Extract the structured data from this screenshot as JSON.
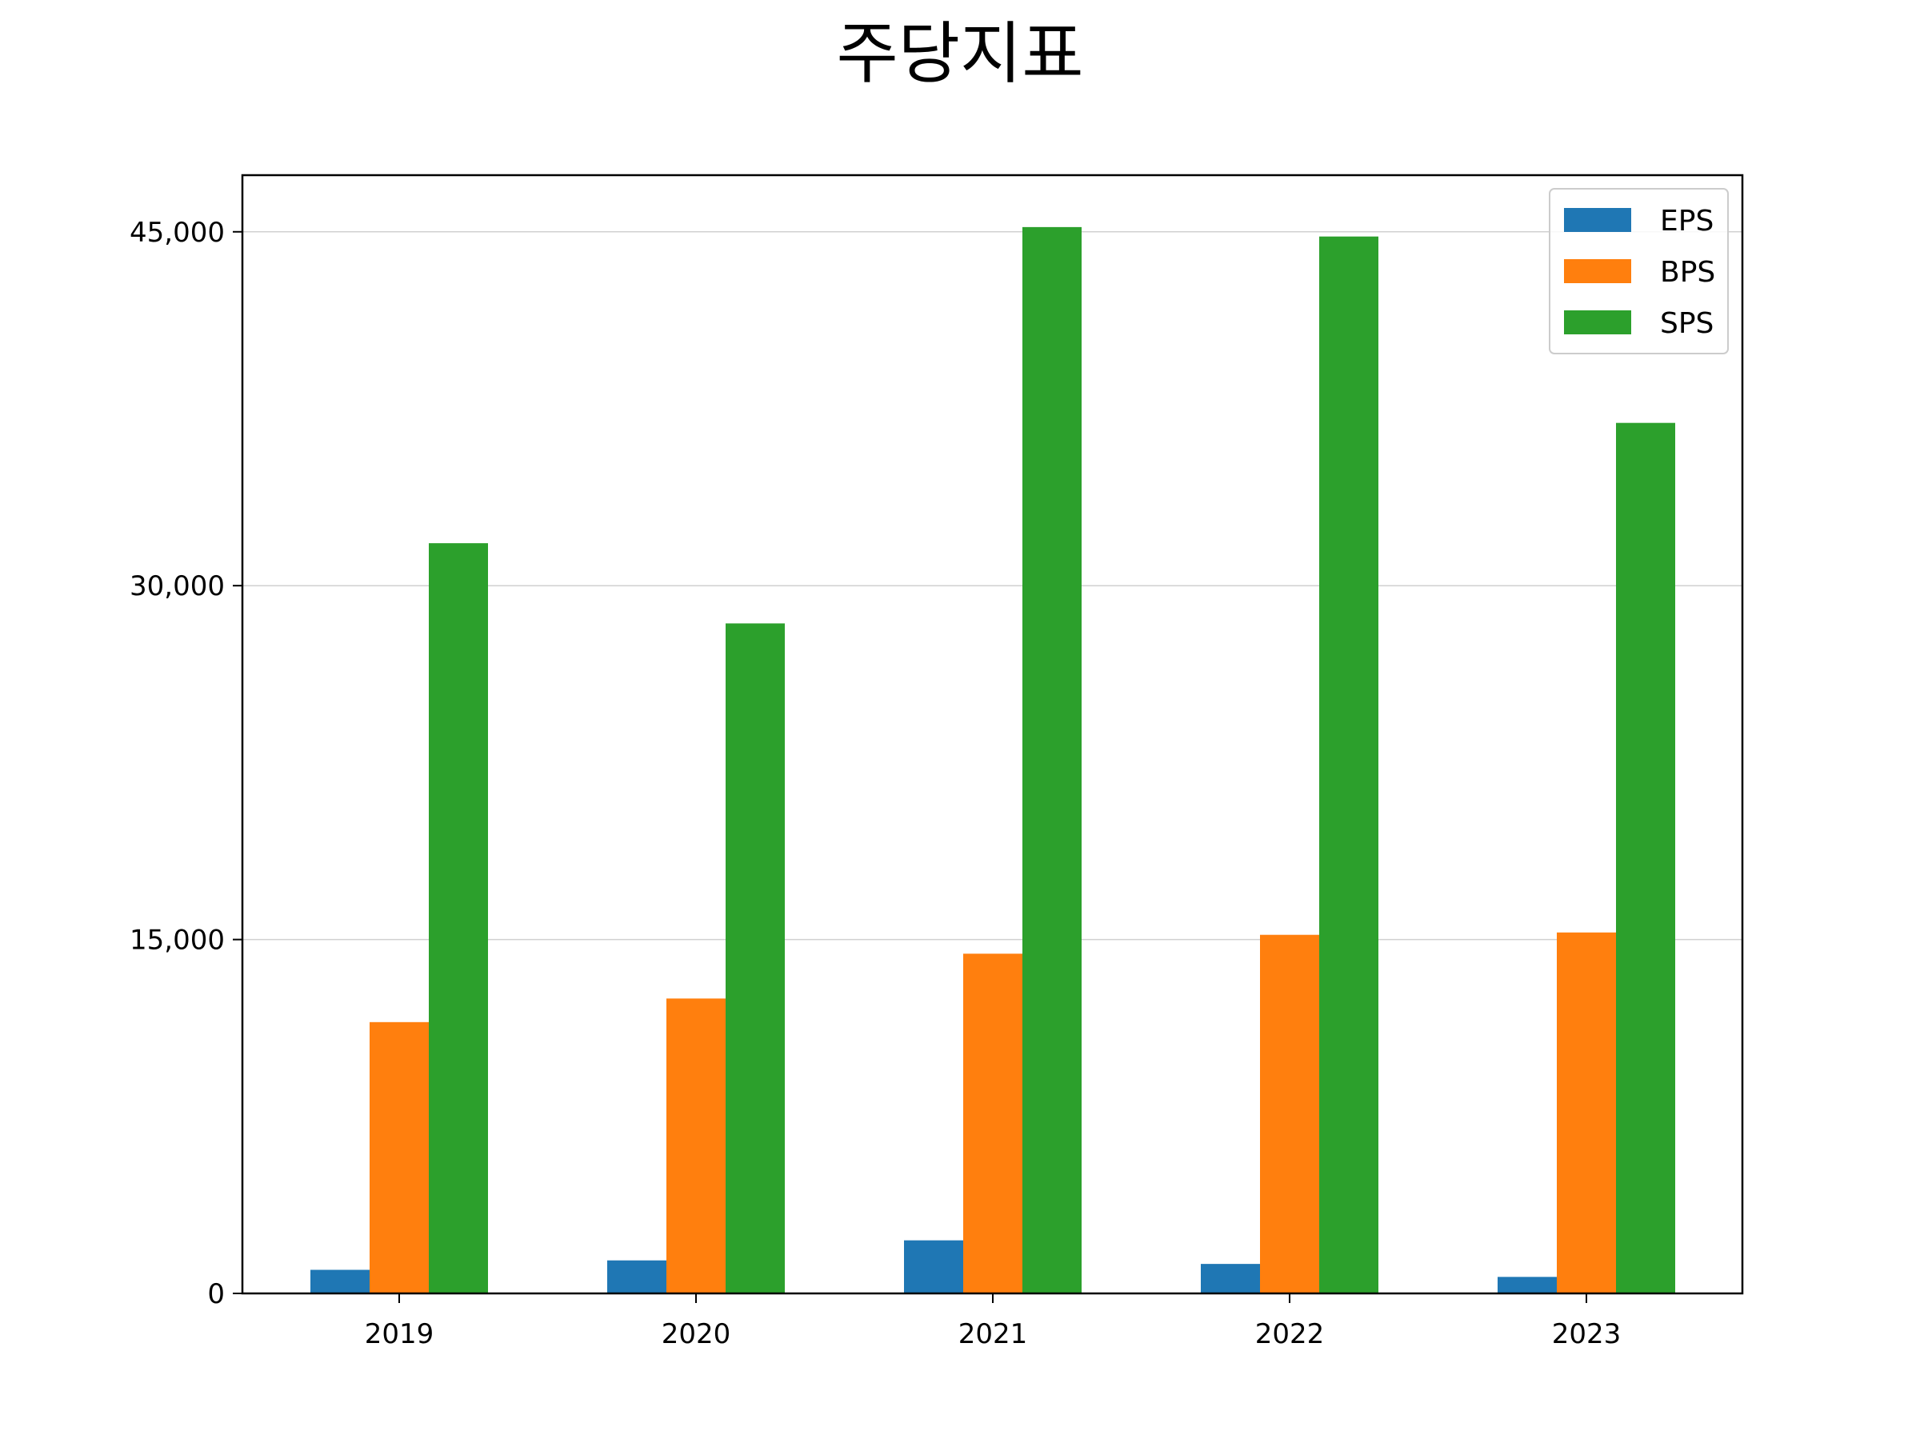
{
  "chart_data": {
    "type": "bar",
    "title": "주당지표",
    "xlabel": "",
    "ylabel": "",
    "categories": [
      "2019",
      "2020",
      "2021",
      "2022",
      "2023"
    ],
    "series": [
      {
        "name": "EPS",
        "color": "#1f77b4",
        "values": [
          1000,
          1400,
          2250,
          1250,
          700
        ]
      },
      {
        "name": "BPS",
        "color": "#ff7f0e",
        "values": [
          11500,
          12500,
          14400,
          15200,
          15300
        ]
      },
      {
        "name": "SPS",
        "color": "#2ca02c",
        "values": [
          31800,
          28400,
          45200,
          44800,
          36900
        ]
      }
    ],
    "ylim": [
      0,
      47400
    ],
    "yticks": [
      0,
      15000,
      30000,
      45000
    ],
    "ytick_labels": [
      "0",
      "15,000",
      "30,000",
      "45,000"
    ],
    "grid": "horizontal",
    "legend_position": "top-right"
  }
}
